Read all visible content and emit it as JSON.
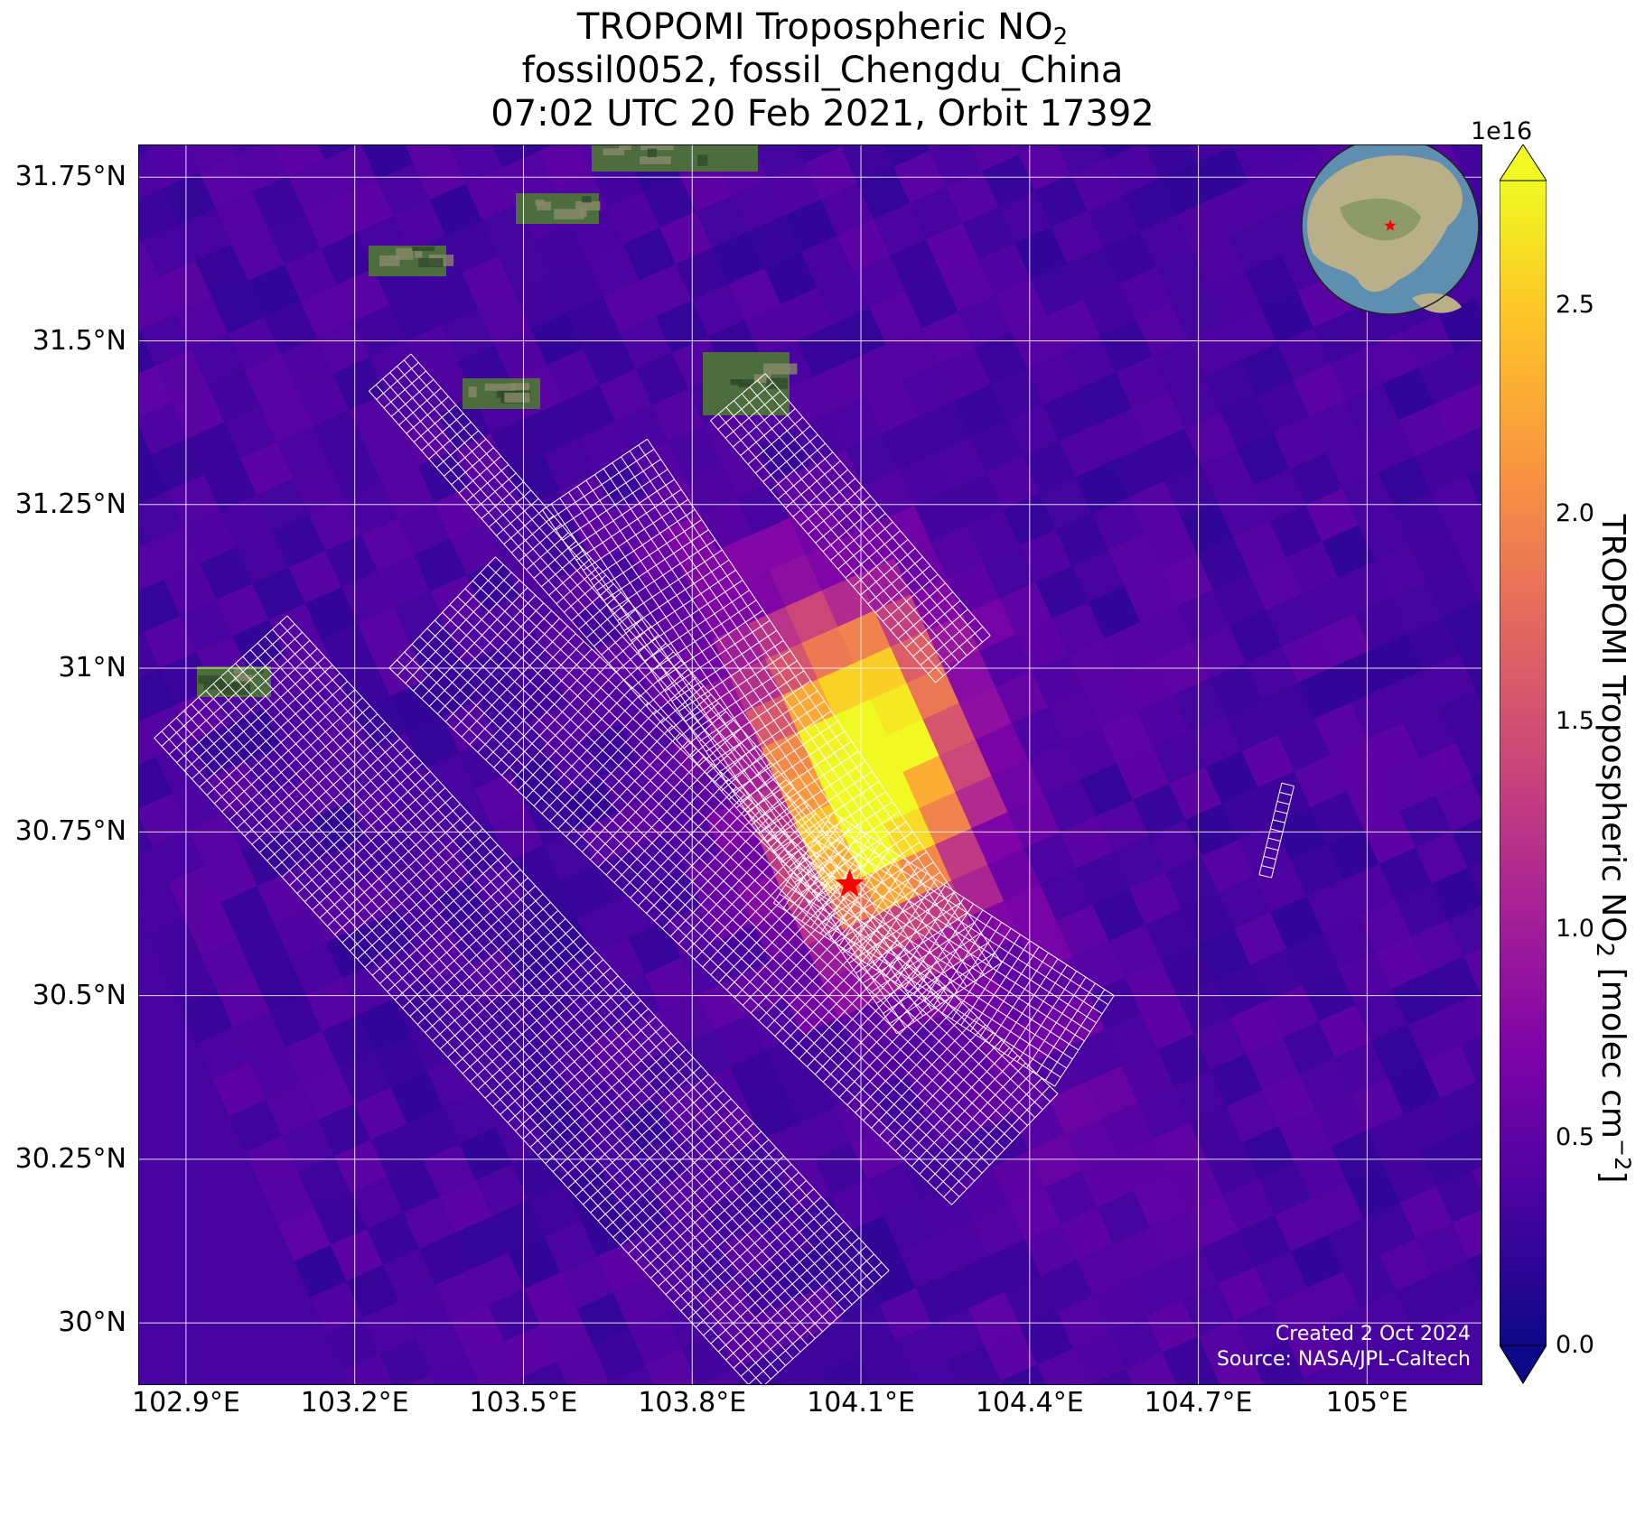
{
  "title": {
    "line1_prefix": "TROPOMI Tropospheric NO",
    "line1_sub": "2",
    "line2": "fossil0052, fossil_Chengdu_China",
    "line3": "07:02 UTC 20 Feb 2021, Orbit 17392"
  },
  "map": {
    "extent": {
      "lon_min": 102.815,
      "lon_max": 105.205,
      "lat_min": 29.905,
      "lat_max": 31.8
    },
    "lat_ticks": [
      {
        "value": 31.75,
        "label": "31.75°N"
      },
      {
        "value": 31.5,
        "label": "31.5°N"
      },
      {
        "value": 31.25,
        "label": "31.25°N"
      },
      {
        "value": 31.0,
        "label": "31°N"
      },
      {
        "value": 30.75,
        "label": "30.75°N"
      },
      {
        "value": 30.5,
        "label": "30.5°N"
      },
      {
        "value": 30.25,
        "label": "30.25°N"
      },
      {
        "value": 30.0,
        "label": "30°N"
      }
    ],
    "lon_ticks": [
      {
        "value": 102.9,
        "label": "102.9°E"
      },
      {
        "value": 103.2,
        "label": "103.2°E"
      },
      {
        "value": 103.5,
        "label": "103.5°E"
      },
      {
        "value": 103.8,
        "label": "103.8°E"
      },
      {
        "value": 104.1,
        "label": "104.1°E"
      },
      {
        "value": 104.4,
        "label": "104.4°E"
      },
      {
        "value": 104.7,
        "label": "104.7°E"
      },
      {
        "value": 105.0,
        "label": "105°E"
      }
    ],
    "source_marker": {
      "lon": 104.08,
      "lat": 30.67,
      "symbol": "star",
      "color": "#ff0000"
    },
    "plume_peak": {
      "lon": 104.12,
      "lat": 30.85,
      "value_e16": 2.7
    },
    "background_level_e16": 0.35,
    "inset_globe": {
      "center_lon": 104.07,
      "center_lat": 30.67,
      "marker_color": "#ff0000"
    },
    "credit_line1": "Created 2 Oct 2024",
    "credit_line2": "Source: NASA/JPL-Caltech"
  },
  "colorbar": {
    "colormap": "plasma",
    "exponent": "1e16",
    "min": 0.0,
    "max": 2.8,
    "extend": "both",
    "ticks": [
      "0.0",
      "0.5",
      "1.0",
      "1.5",
      "2.0",
      "2.5"
    ],
    "tick_values": [
      0.0,
      0.5,
      1.0,
      1.5,
      2.0,
      2.5
    ],
    "label_prefix": "TROPOMI Tropospheric NO",
    "label_sub": "2",
    "label_mid": " [molec cm",
    "label_sup": "−2",
    "label_suffix": "]"
  }
}
